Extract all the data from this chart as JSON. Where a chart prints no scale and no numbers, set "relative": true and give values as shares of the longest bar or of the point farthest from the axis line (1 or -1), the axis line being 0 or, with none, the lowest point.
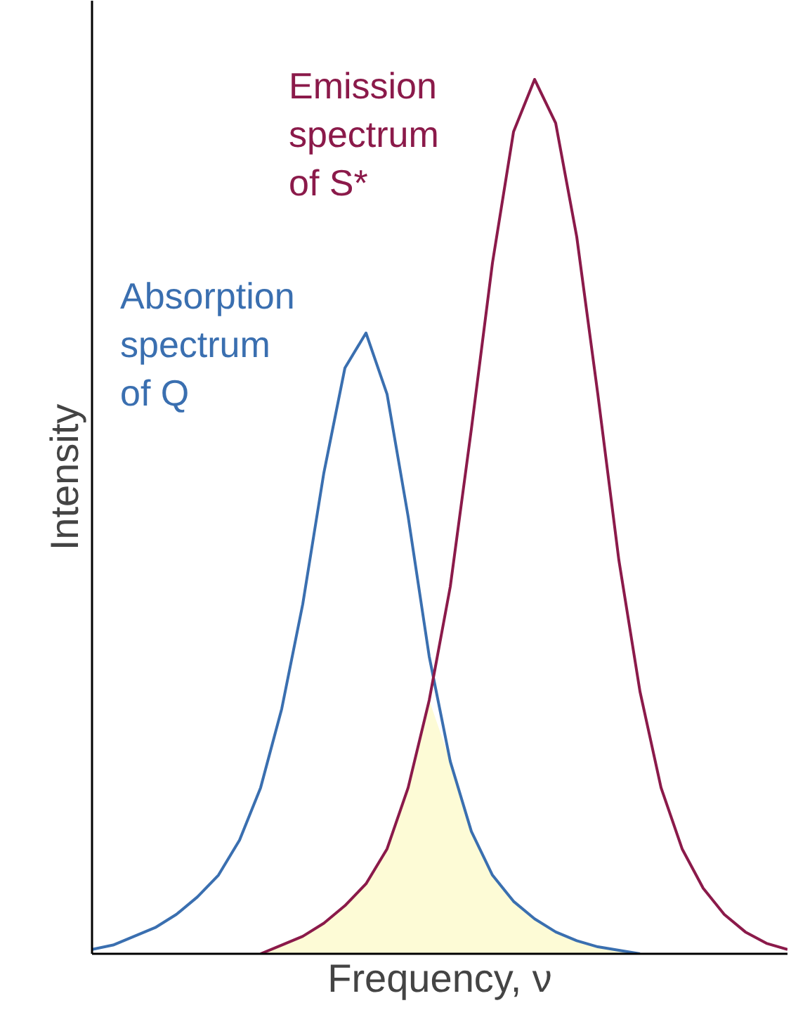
{
  "chart_data": {
    "type": "line",
    "relative": true,
    "xlabel": "Frequency, ν",
    "ylabel": "Intensity",
    "categories": [
      null,
      null,
      null,
      null,
      null,
      null,
      null,
      null,
      null,
      null,
      null,
      null,
      null,
      null,
      null,
      null,
      null,
      null,
      null,
      null,
      null,
      null,
      null,
      null,
      null,
      null,
      null,
      null,
      null,
      null,
      null,
      null,
      null,
      null
    ],
    "series": [
      {
        "type": "area",
        "color": "#fdfbd6",
        "values": [
          null,
          null,
          null,
          null,
          null,
          null,
          null,
          null,
          0,
          0.01,
          0.02,
          0.035,
          0.055,
          0.08,
          0.12,
          0.19,
          0.29,
          0.22,
          0.14,
          0.09,
          0.06,
          0.04,
          0.025,
          0.015,
          0.008,
          0.004,
          0,
          null,
          null,
          null,
          null,
          null,
          null,
          null
        ]
      },
      {
        "name": "Absorption spectrum of Q",
        "color": "#3a6fb0",
        "values": [
          0.005,
          0.01,
          0.02,
          0.03,
          0.045,
          0.065,
          0.09,
          0.13,
          0.19,
          0.28,
          0.4,
          0.55,
          0.67,
          0.71,
          0.64,
          0.5,
          0.34,
          0.22,
          0.14,
          0.09,
          0.06,
          0.04,
          0.025,
          0.015,
          0.008,
          0.004,
          0,
          null,
          null,
          null,
          null,
          null,
          null,
          null
        ]
      },
      {
        "name": "Emission spectrum of S*",
        "color": "#8b1a4a",
        "values": [
          null,
          null,
          null,
          null,
          null,
          null,
          null,
          null,
          0,
          0.01,
          0.02,
          0.035,
          0.055,
          0.08,
          0.12,
          0.19,
          0.29,
          0.42,
          0.6,
          0.79,
          0.94,
          1.0,
          0.95,
          0.82,
          0.64,
          0.45,
          0.3,
          0.19,
          0.12,
          0.075,
          0.045,
          0.025,
          0.012,
          0.005
        ]
      }
    ]
  }
}
